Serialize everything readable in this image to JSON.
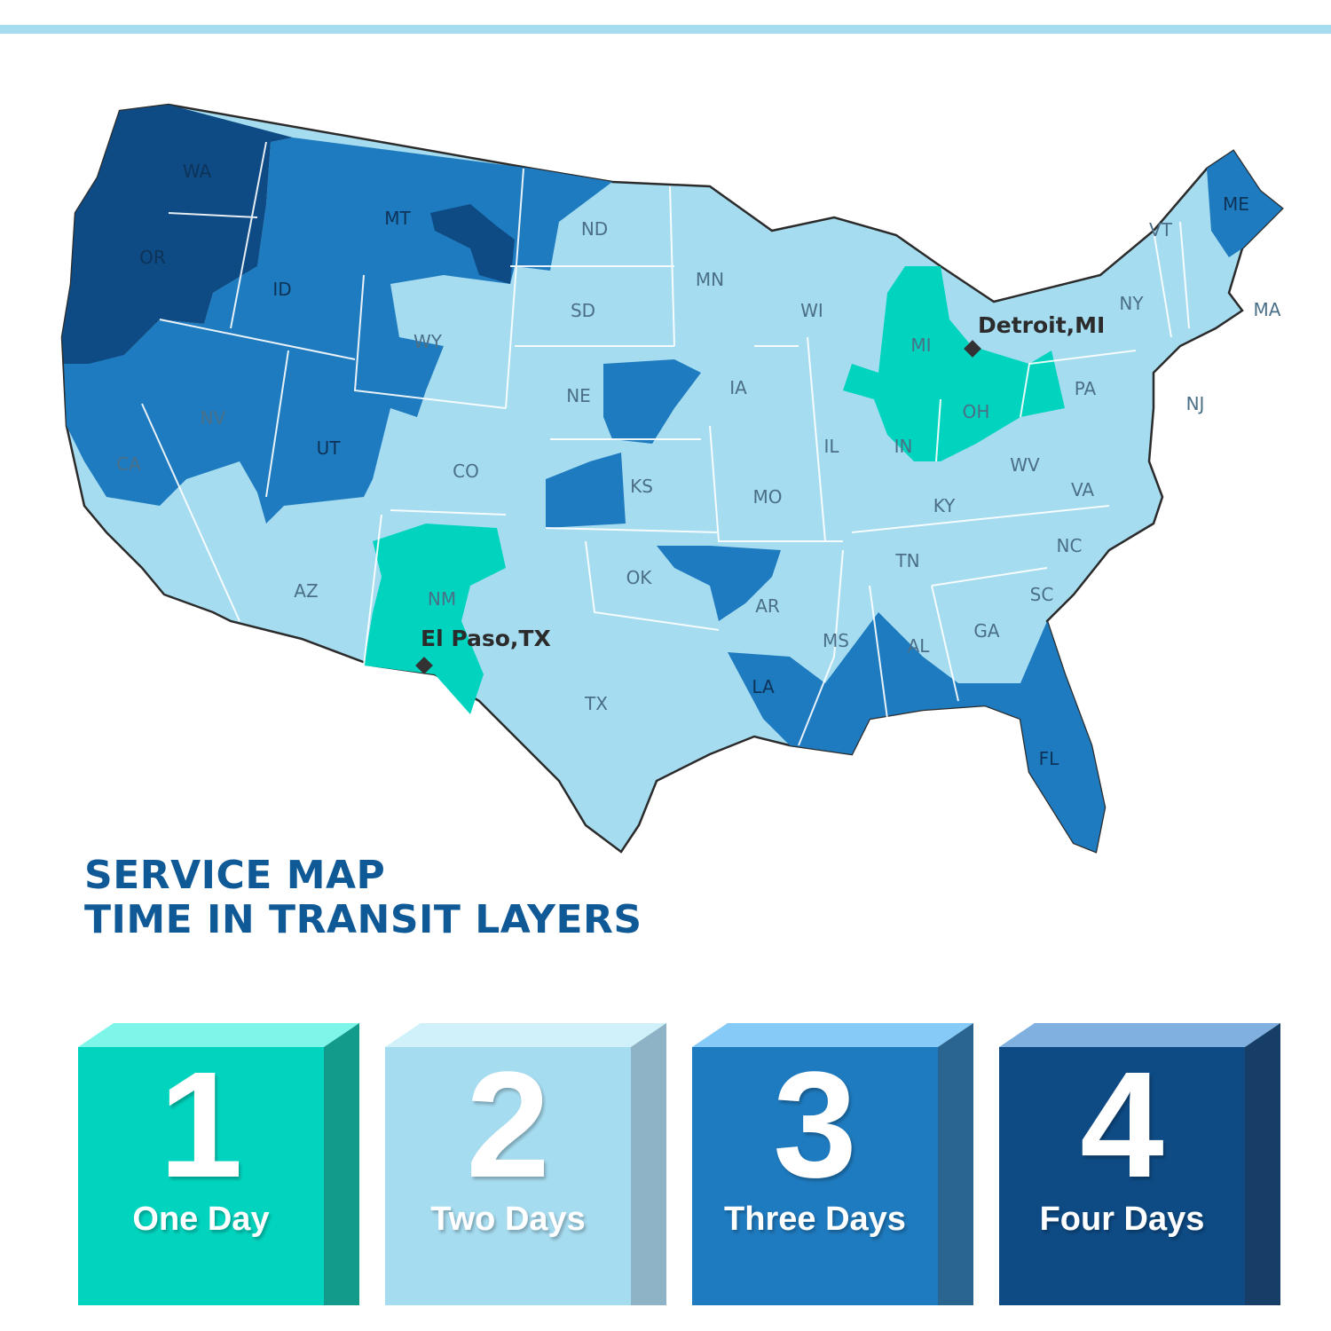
{
  "title": {
    "line1": "SERVICE MAP",
    "line2": "TIME IN TRANSIT LAYERS"
  },
  "tier_colors": {
    "one_day": "#00d4be",
    "two_days": "#a6dcf0",
    "three_days": "#1f7bbf",
    "four_days": "#0e4b85"
  },
  "states": [
    "WA",
    "OR",
    "CA",
    "ID",
    "NV",
    "MT",
    "WY",
    "UT",
    "AZ",
    "CO",
    "NM",
    "ND",
    "SD",
    "NE",
    "KS",
    "OK",
    "TX",
    "MN",
    "IA",
    "MO",
    "AR",
    "LA",
    "WI",
    "IL",
    "MI",
    "IN",
    "OH",
    "KY",
    "TN",
    "MS",
    "AL",
    "GA",
    "FL",
    "SC",
    "NC",
    "VA",
    "WV",
    "PA",
    "NY",
    "VT",
    "ME",
    "MA",
    "NJ"
  ],
  "cities": [
    {
      "name": "Detroit,MI",
      "tier": "one_day"
    },
    {
      "name": "El Paso,TX",
      "tier": "one_day"
    }
  ],
  "legend": [
    {
      "number": "1",
      "label": "One Day",
      "front": "#00d4be",
      "top": "#7df5e8",
      "side": "#129a8a"
    },
    {
      "number": "2",
      "label": "Two Days",
      "front": "#a6dcf0",
      "top": "#d0f1fa",
      "side": "#8eb3c6"
    },
    {
      "number": "3",
      "label": "Three Days",
      "front": "#1f7bbf",
      "top": "#86cbf7",
      "side": "#2a6590"
    },
    {
      "number": "4",
      "label": "Four Days",
      "front": "#0e4b85",
      "top": "#7fb0e0",
      "side": "#173e66"
    }
  ]
}
